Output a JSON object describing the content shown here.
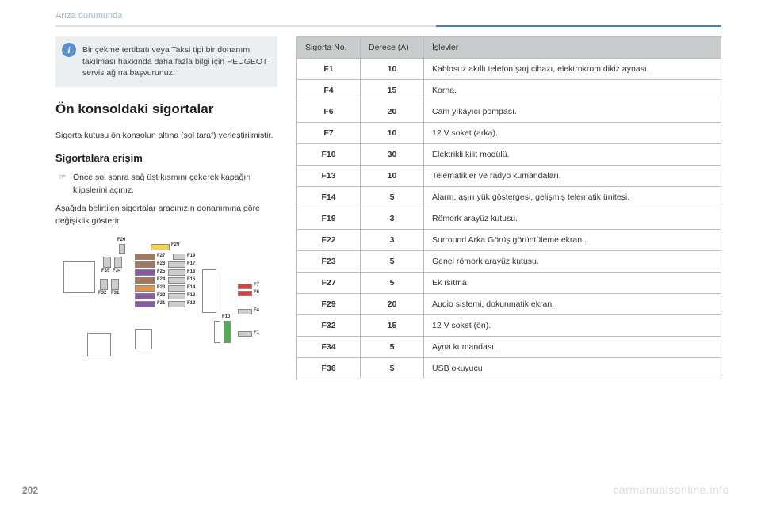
{
  "page": {
    "breadcrumb": "Arıza durumunda",
    "page_number": "202",
    "watermark": "carmanualsonline.info"
  },
  "info_box": {
    "icon": "i",
    "text": "Bir çekme tertibatı veya Taksi tipi bir donanım takılması hakkında daha fazla bilgi için PEUGEOT servis ağına başvurunuz."
  },
  "left": {
    "title": "Ön konsoldaki sigortalar",
    "intro": "Sigorta kutusu ön konsolun altına (sol taraf) yerleştirilmiştir.",
    "subtitle": "Sigortalara erişim",
    "bullet_marker": "☞",
    "bullet": "Önce sol sonra sağ üst kısmını çekerek kapağın klipslerini açınız.",
    "note": "Aşağıda belirtilen sigortalar aracınızın donanımına göre değişiklik gösterir."
  },
  "diagram": {
    "labels": {
      "top_row": [
        "F20",
        "F29"
      ],
      "upper_left_group": [
        "F35",
        "F34"
      ],
      "left_pair": [
        "F32",
        "F31"
      ],
      "right_of_block_top": "F19",
      "col_left": [
        "F27",
        "F26",
        "F25",
        "F24",
        "F23",
        "F22",
        "F21"
      ],
      "col_right": [
        "F17",
        "F16",
        "F15",
        "F14",
        "F13",
        "F12"
      ],
      "far_right": [
        "F7",
        "F6",
        "F4",
        "F1"
      ],
      "green_label": "F10"
    },
    "colors": {
      "yellow": "#f4d442",
      "purple": "#8a5aa8",
      "brown": "#a8765a",
      "red": "#d84040",
      "green": "#4caf50",
      "grey": "#cccccc",
      "orange": "#e0944a"
    }
  },
  "table": {
    "headers": [
      "Sigorta No.",
      "Derece (A)",
      "İşlevler"
    ],
    "rows": [
      [
        "F1",
        "10",
        "Kablosuz akıllı telefon şarj cihazı, elektrokrom dikiz aynası."
      ],
      [
        "F4",
        "15",
        "Korna."
      ],
      [
        "F6",
        "20",
        "Cam yıkayıcı pompası."
      ],
      [
        "F7",
        "10",
        "12 V soket (arka)."
      ],
      [
        "F10",
        "30",
        "Elektrikli kilit modülü."
      ],
      [
        "F13",
        "10",
        "Telematikler ve radyo kumandaları."
      ],
      [
        "F14",
        "5",
        "Alarm, aşırı yük göstergesi, gelişmiş telematik ünitesi."
      ],
      [
        "F19",
        "3",
        "Römork arayüz kutusu."
      ],
      [
        "F22",
        "3",
        "Surround Arka Görüş görüntüleme ekranı."
      ],
      [
        "F23",
        "5",
        "Genel römork arayüz kutusu."
      ],
      [
        "F27",
        "5",
        "Ek ısıtma."
      ],
      [
        "F29",
        "20",
        "Audio sistemi, dokunmatik ekran."
      ],
      [
        "F32",
        "15",
        "12 V soket (ön)."
      ],
      [
        "F34",
        "5",
        "Ayna kumandası."
      ],
      [
        "F36",
        "5",
        "USB okuyucu"
      ]
    ]
  }
}
